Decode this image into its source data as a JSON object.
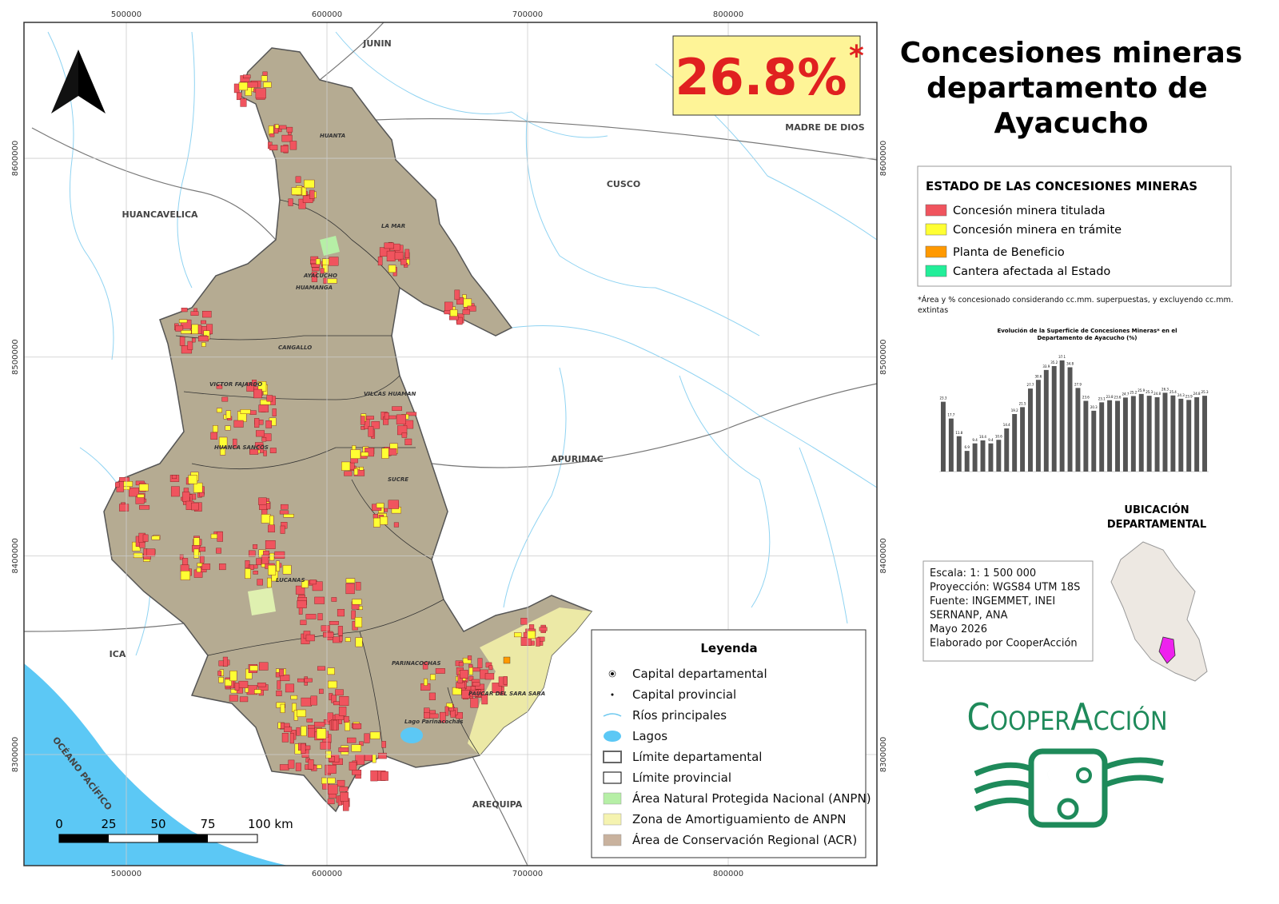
{
  "header": {
    "title_lines": [
      "Concesiones mineras",
      "departamento de",
      "Ayacucho"
    ]
  },
  "highlight": {
    "text": "26.8%",
    "mark": "*"
  },
  "map": {
    "xlim": [
      449000,
      874100
    ],
    "ylim": [
      8244100,
      8668400
    ],
    "xticks": [
      500000,
      600000,
      700000,
      800000
    ],
    "yticks": [
      8300000,
      8400000,
      8500000,
      8600000
    ],
    "regions": [
      "JUNIN",
      "HUANCAVELICA",
      "CUSCO",
      "MADRE DE DIOS",
      "APURIMAC",
      "ICA",
      "AREQUIPA",
      "OCÉANO PACÍFICO"
    ],
    "places": [
      "HUANTA",
      "LA MAR",
      "AYACUCHO",
      "HUAMANGA",
      "CANGALLO",
      "VILCAS HUAMAN",
      "VICTOR FAJARDO",
      "HUANCA SANCOS",
      "SUCRE",
      "LUCANAS",
      "PARINACOCHAS",
      "PAUCAR DEL SARA SARA",
      "Lago Parinacochas"
    ],
    "scale_bar": [
      "0",
      "25",
      "50",
      "75",
      "100 km"
    ]
  },
  "legend": {
    "title": "Leyenda",
    "items": [
      "Capital departamental",
      "Capital provincial",
      "Ríos principales",
      "Lagos",
      "Límite departamental",
      "Límite provincial",
      "Área Natural Protegida Nacional (ANPN)",
      "Zona de Amortiguamiento de ANPN",
      "Área de Conservación Regional (ACR)"
    ]
  },
  "status": {
    "title": "ESTADO DE LAS CONCESIONES MINERAS",
    "items": [
      {
        "label": "Concesión minera titulada",
        "color": "#f0545e"
      },
      {
        "label": "Concesión minera en trámite",
        "color": "#ffff33"
      },
      {
        "label": "Planta de Beneficio",
        "color": "#ff9900"
      },
      {
        "label": "Cantera afectada al Estado",
        "color": "#22ee99"
      }
    ],
    "note": "*Área y % concesionado considerando cc.mm. superpuestas, y excluyendo cc.mm. extintas"
  },
  "chart_data": {
    "type": "bar",
    "title": "Evolución de la Superficie de Concesiones Mineras* en el Departamento de Ayacucho (%)",
    "values": [
      23.3,
      17.7,
      11.8,
      6.9,
      9.4,
      10.4,
      9.4,
      10.6,
      14.4,
      19.2,
      21.5,
      27.7,
      30.6,
      33.9,
      35.2,
      37.1,
      34.8,
      27.9,
      23.6,
      20.3,
      23.1,
      23.8,
      23.6,
      24.7,
      25.2,
      25.9,
      25.3,
      24.8,
      26.3,
      25.4,
      24.3,
      23.9,
      24.8,
      25.3
    ],
    "color": "#555555",
    "ylim": [
      0,
      40
    ]
  },
  "location": {
    "title_lines": [
      "UBICACIÓN",
      "DEPARTAMENTAL"
    ]
  },
  "info": [
    "Escala: 1: 1 500 000",
    "Proyección: WGS84 UTM 18S",
    "Fuente: INGEMMET, INEI",
    "SERNANP, ANA",
    "Mayo 2026",
    "Elaborado por CooperAcción"
  ],
  "brand": "CooperAcción"
}
